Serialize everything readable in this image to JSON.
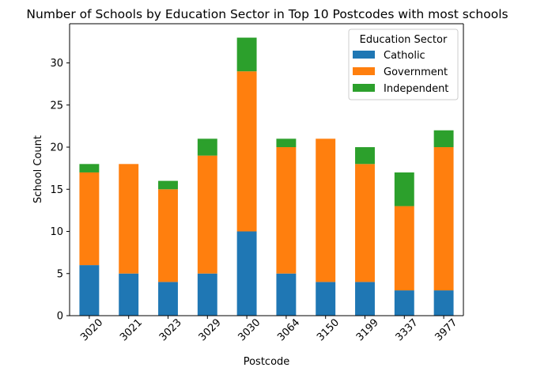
{
  "chart_data": {
    "type": "bar",
    "stacked": true,
    "title": "Number of Schools by Education Sector in Top 10 Postcodes with most schools",
    "xlabel": "Postcode",
    "ylabel": "School Count",
    "categories": [
      "3020",
      "3021",
      "3023",
      "3029",
      "3030",
      "3064",
      "3150",
      "3199",
      "3337",
      "3977"
    ],
    "series": [
      {
        "name": "Catholic",
        "color": "#1f77b4",
        "values": [
          6,
          5,
          4,
          5,
          10,
          5,
          4,
          4,
          3,
          3
        ]
      },
      {
        "name": "Government",
        "color": "#ff7f0e",
        "values": [
          11,
          13,
          11,
          14,
          19,
          15,
          17,
          14,
          10,
          17
        ]
      },
      {
        "name": "Independent",
        "color": "#2ca02c",
        "values": [
          1,
          0,
          1,
          2,
          4,
          1,
          0,
          2,
          4,
          2
        ]
      }
    ],
    "ylim": [
      0,
      34.65
    ],
    "yticks": [
      0,
      5,
      10,
      15,
      20,
      25,
      30
    ],
    "grid": false,
    "legend": {
      "title": "Education Sector",
      "position": "top-right"
    }
  }
}
